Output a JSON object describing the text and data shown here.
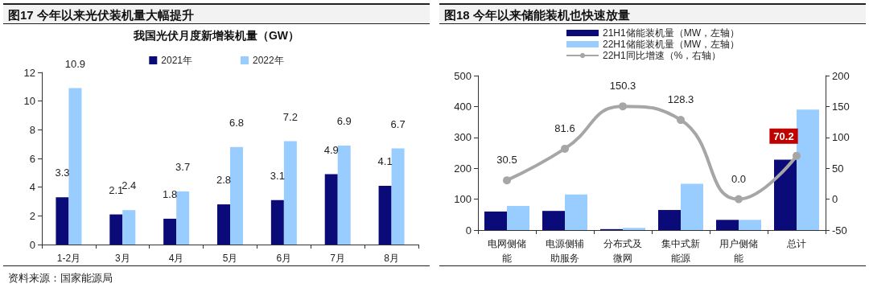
{
  "chart_data": [
    {
      "type": "bar",
      "title": "图17 今年以来光伏装机量大幅提升",
      "subtitle": "我国光伏月度新增装机量（GW）",
      "categories": [
        "1-2月",
        "3月",
        "4月",
        "5月",
        "6月",
        "7月",
        "8月"
      ],
      "series": [
        {
          "name": "2021年",
          "color": "#0a0a78",
          "values": [
            3.3,
            2.1,
            1.8,
            2.8,
            3.1,
            4.9,
            4.1
          ]
        },
        {
          "name": "2022年",
          "color": "#99ccff",
          "values": [
            10.9,
            2.4,
            3.7,
            6.8,
            7.2,
            6.9,
            6.7
          ]
        }
      ],
      "ylim": [
        0,
        12
      ],
      "yticks": [
        0,
        2,
        4,
        6,
        8,
        10,
        12
      ],
      "data_labels": true,
      "grid": false,
      "legend": "top",
      "annotations": [
        "资料来源：国家能源局"
      ]
    },
    {
      "type": "bar",
      "title": "图18 今年以来储能装机也快速放量",
      "categories": [
        "电网侧储能",
        "电源侧辅助服务",
        "分布式及微网",
        "集中式新能源",
        "用户侧储能",
        "总计"
      ],
      "series": [
        {
          "name": "21H1储能装机量（MW，左轴）",
          "color": "#0a0a78",
          "values": [
            60,
            62,
            3,
            65,
            33,
            228
          ]
        },
        {
          "name": "22H1储能装机量（MW，左轴）",
          "color": "#99ccff",
          "values": [
            78,
            115,
            7,
            150,
            33,
            390
          ]
        },
        {
          "name": "22H1同比增速（%，右轴）",
          "type": "line",
          "axis": "y2",
          "color": "#a6a6a6",
          "marker": "circle",
          "values": [
            30.5,
            81.6,
            150.3,
            128.3,
            0.0,
            70.2
          ],
          "value_labels": [
            "30.5",
            "81.6",
            "150.3",
            "128.3",
            "0.0",
            "70.2"
          ]
        }
      ],
      "ylim": [
        0,
        500
      ],
      "yticks": [
        0,
        100,
        200,
        300,
        400,
        500
      ],
      "y2lim": [
        -50,
        200
      ],
      "y2ticks": [
        -50,
        0,
        50,
        100,
        150,
        200
      ],
      "grid": false,
      "legend": "top"
    }
  ]
}
